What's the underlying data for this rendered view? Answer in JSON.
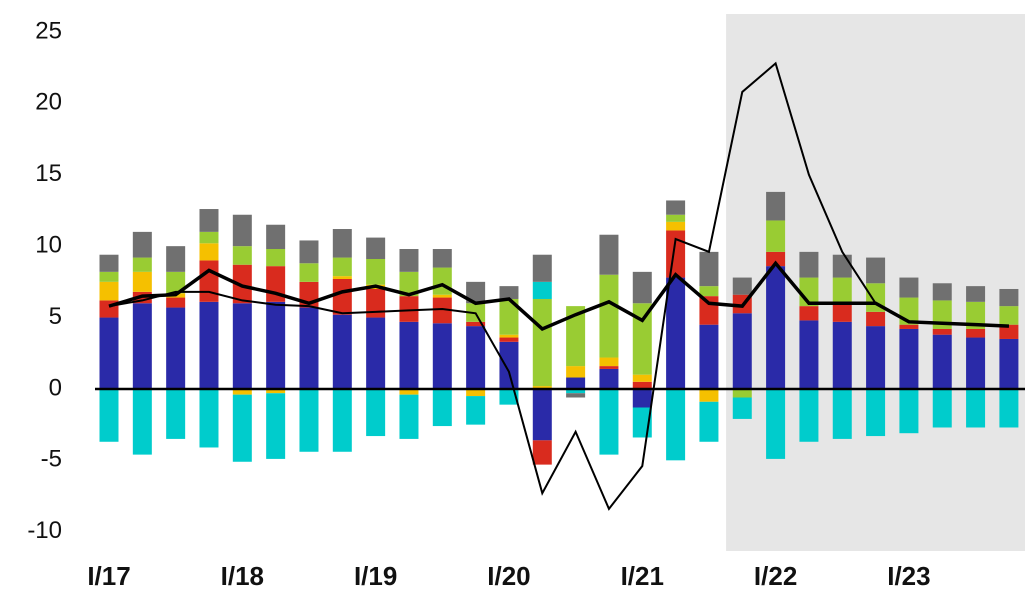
{
  "chart_data": {
    "type": "bar",
    "categories": [
      "I/17",
      null,
      null,
      null,
      "I/18",
      null,
      null,
      null,
      "I/19",
      null,
      null,
      null,
      "I/20",
      null,
      null,
      null,
      "I/21",
      null,
      null,
      null,
      "I/22",
      null,
      null,
      null,
      "I/23",
      null,
      null,
      null
    ],
    "ylim": [
      -11,
      26
    ],
    "yticks": [
      25,
      20,
      15,
      10,
      5,
      0,
      -5,
      -10
    ],
    "series": [
      {
        "color": "#2a2aa8",
        "values": [
          5.0,
          6.0,
          5.7,
          6.1,
          6.0,
          6.1,
          5.7,
          5.2,
          5.0,
          4.7,
          4.6,
          4.4,
          3.3,
          -3.6,
          0.8,
          1.4,
          -1.3,
          7.8,
          4.5,
          5.3,
          8.6,
          4.8,
          4.7,
          4.4,
          4.2,
          3.8,
          3.6,
          3.5
        ]
      },
      {
        "color": "#d92b1e",
        "values": [
          1.2,
          0.8,
          0.7,
          2.9,
          2.7,
          2.5,
          1.8,
          2.5,
          2.0,
          1.8,
          1.8,
          0.3,
          0.3,
          -1.7,
          0,
          0.2,
          0.5,
          3.3,
          2.0,
          1.3,
          1.0,
          1.0,
          1.3,
          1.0,
          0.3,
          0.4,
          0.6,
          1.0
        ]
      },
      {
        "color": "#f5c000",
        "values": [
          1.3,
          1.4,
          0.3,
          1.2,
          -0.4,
          -0.3,
          0,
          0.2,
          0.3,
          -0.4,
          0.2,
          -0.5,
          0.2,
          0.2,
          0.8,
          0.6,
          0.5,
          0.6,
          -0.9,
          0,
          0,
          0,
          0,
          0,
          0,
          0,
          0,
          0
        ]
      },
      {
        "color": "#99cc33",
        "values": [
          0.7,
          1.0,
          1.5,
          0.8,
          1.3,
          1.2,
          1.3,
          1.3,
          1.8,
          1.7,
          1.9,
          1.3,
          2.5,
          6.1,
          4.2,
          5.8,
          5.0,
          0.5,
          0.7,
          -0.6,
          2.2,
          2.0,
          1.8,
          2.0,
          1.9,
          2.0,
          1.9,
          1.3
        ]
      },
      {
        "color": "#00cccc",
        "values": [
          -3.7,
          -4.6,
          -3.5,
          -4.1,
          -4.7,
          -4.6,
          -4.4,
          -4.4,
          -3.3,
          -3.1,
          -2.6,
          -2.0,
          -1.1,
          1.2,
          -0.3,
          -4.6,
          -2.1,
          -5.0,
          -2.8,
          -1.5,
          -4.9,
          -3.7,
          -3.5,
          -3.3,
          -3.1,
          -2.7,
          -2.7,
          -2.7
        ]
      },
      {
        "color": "#707070",
        "values": [
          1.2,
          1.8,
          1.8,
          1.6,
          2.2,
          1.7,
          1.6,
          2.0,
          1.5,
          1.6,
          1.3,
          1.5,
          0.9,
          1.9,
          -0.3,
          2.8,
          2.2,
          1.0,
          2.4,
          1.2,
          2.0,
          1.8,
          1.6,
          1.8,
          1.4,
          1.2,
          1.1,
          1.2
        ]
      }
    ],
    "lines": [
      {
        "color": "#000000",
        "width": 3.5,
        "values": [
          5.8,
          6.5,
          6.6,
          8.3,
          7.2,
          6.7,
          6.0,
          6.8,
          7.2,
          6.6,
          7.3,
          6.0,
          6.3,
          4.2,
          5.2,
          6.1,
          4.8,
          8.0,
          6.0,
          5.8,
          8.8,
          6.0,
          6.0,
          6.0,
          4.7,
          4.6,
          4.5,
          4.4
        ]
      },
      {
        "color": "#000000",
        "width": 2,
        "values": [
          5.8,
          6.2,
          6.8,
          6.8,
          6.2,
          5.9,
          5.8,
          5.3,
          5.4,
          5.5,
          5.6,
          5.3,
          1.2,
          -7.3,
          -3.0,
          -8.4,
          -5.4,
          10.5,
          9.6,
          20.8,
          22.8,
          15.0,
          9.6,
          6.0,
          4.7,
          4.6,
          4.5,
          4.4
        ]
      }
    ]
  }
}
